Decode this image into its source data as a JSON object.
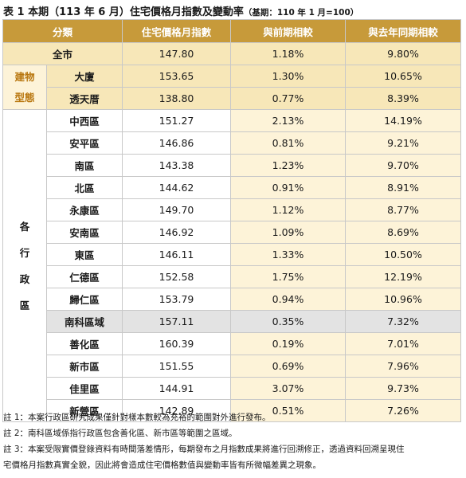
{
  "title": "表 1 本期（113 年 6 月）住宅價格月指數及變動率",
  "base_note": "（基期：110 年 1 月=100）",
  "columns": [
    "分類",
    "住宅價格月指數",
    "與前期相較",
    "與去年同期相較"
  ],
  "whole_city": {
    "label": "全市",
    "index": "147.80",
    "mom": "1.18%",
    "yoy": "9.80%"
  },
  "building_type": {
    "group_label": [
      "建物",
      "型態"
    ],
    "rows": [
      {
        "label": "大廈",
        "index": "153.65",
        "mom": "1.30%",
        "yoy": "10.65%"
      },
      {
        "label": "透天厝",
        "index": "138.80",
        "mom": "0.77%",
        "yoy": "8.39%"
      }
    ]
  },
  "districts": {
    "group_label": [
      "各",
      "行",
      "政",
      "區"
    ],
    "rows": [
      {
        "label": "中西區",
        "index": "151.27",
        "mom": "2.13%",
        "yoy": "14.19%"
      },
      {
        "label": "安平區",
        "index": "146.86",
        "mom": "0.81%",
        "yoy": "9.21%"
      },
      {
        "label": "南區",
        "index": "143.38",
        "mom": "1.23%",
        "yoy": "9.70%"
      },
      {
        "label": "北區",
        "index": "144.62",
        "mom": "0.91%",
        "yoy": "8.91%"
      },
      {
        "label": "永康區",
        "index": "149.70",
        "mom": "1.12%",
        "yoy": "8.77%"
      },
      {
        "label": "安南區",
        "index": "146.92",
        "mom": "1.09%",
        "yoy": "8.69%"
      },
      {
        "label": "東區",
        "index": "146.11",
        "mom": "1.33%",
        "yoy": "10.50%"
      },
      {
        "label": "仁德區",
        "index": "152.58",
        "mom": "1.75%",
        "yoy": "12.19%"
      },
      {
        "label": "歸仁區",
        "index": "153.79",
        "mom": "0.94%",
        "yoy": "10.96%"
      },
      {
        "label": "南科區域",
        "index": "157.11",
        "mom": "0.35%",
        "yoy": "7.32%",
        "highlight": true
      },
      {
        "label": "善化區",
        "index": "160.39",
        "mom": "0.19%",
        "yoy": "7.01%"
      },
      {
        "label": "新市區",
        "index": "151.55",
        "mom": "0.69%",
        "yoy": "7.96%"
      },
      {
        "label": "佳里區",
        "index": "144.91",
        "mom": "3.07%",
        "yoy": "9.73%"
      },
      {
        "label": "新營區",
        "index": "142.89",
        "mom": "0.51%",
        "yoy": "7.26%"
      }
    ]
  },
  "notes": [
    "註 1：本案行政區研究成果僅針對樣本數較為充裕的範圍對外進行發布。",
    "註 2：南科區域係指行政區包含善化區、新市區等範圍之區域。",
    "註 3：本案受限實價登錄資料有時間落差情形，每期發布之月指數成果將進行回溯修正，透過資料回溯呈現住",
    "宅價格月指數真實全貌，因此將會造成住宅價格數值與變動率皆有所微幅差異之現象。"
  ]
}
